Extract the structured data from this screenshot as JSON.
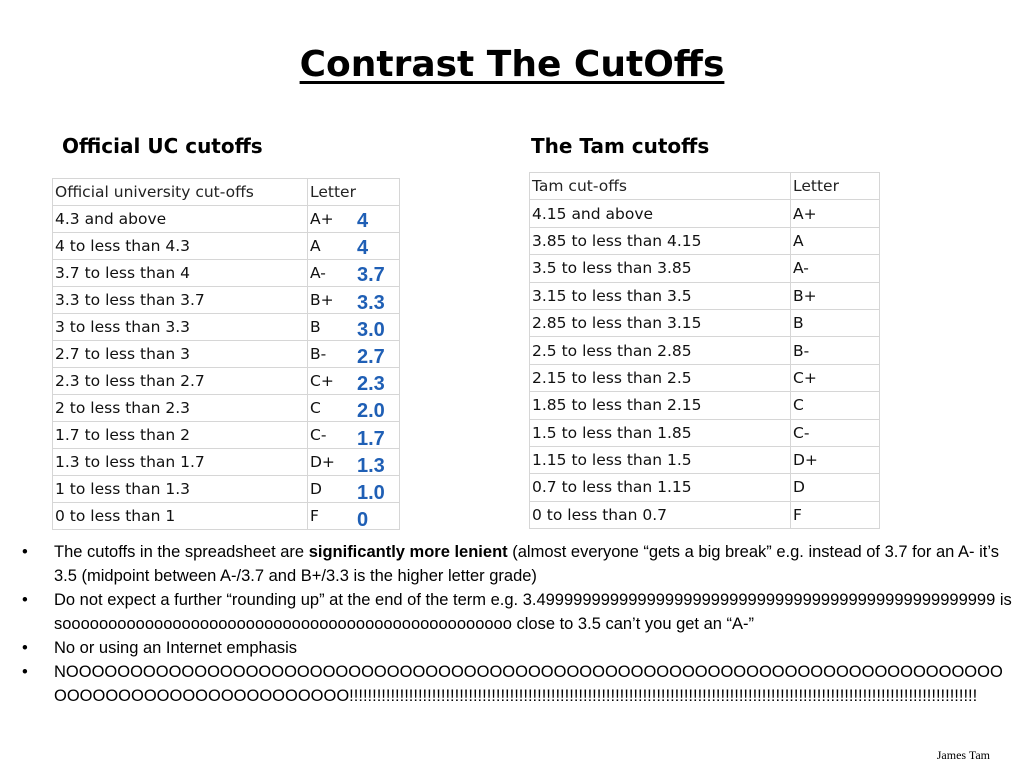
{
  "title": "Contrast The CutOffs",
  "uc": {
    "heading": "Official UC cutoffs",
    "header": [
      "Official university cut-offs",
      "Letter"
    ],
    "rows": [
      [
        "4.3 and above",
        "A+"
      ],
      [
        "4 to less than 4.3",
        "A"
      ],
      [
        "3.7 to less than 4",
        "A-"
      ],
      [
        "3.3 to less than 3.7",
        "B+"
      ],
      [
        "3 to less than 3.3",
        "B"
      ],
      [
        "2.7 to less than 3",
        "B-"
      ],
      [
        "2.3 to less than 2.7",
        "C+"
      ],
      [
        "2 to less than 2.3",
        "C"
      ],
      [
        "1.7 to less than 2",
        "C-"
      ],
      [
        "1.3 to less than 1.7",
        "D+"
      ],
      [
        "1 to less than 1.3",
        "D"
      ],
      [
        "0 to less than 1",
        "F"
      ]
    ],
    "grade_points": [
      "4",
      "4",
      "3.7",
      "3.3",
      "3.0",
      "2.7",
      "2.3",
      "2.0",
      "1.7",
      "1.3",
      "1.0",
      "0"
    ]
  },
  "tam": {
    "heading": "The Tam cutoffs",
    "header": [
      "Tam cut-offs",
      "Letter"
    ],
    "rows": [
      [
        "4.15 and above",
        "A+"
      ],
      [
        "3.85 to less than 4.15",
        "A"
      ],
      [
        "3.5 to less than 3.85",
        "A-"
      ],
      [
        "3.15 to less than 3.5",
        "B+"
      ],
      [
        "2.85 to less than 3.15",
        "B"
      ],
      [
        "2.5 to less than 2.85",
        "B-"
      ],
      [
        "2.15 to less than 2.5",
        "C+"
      ],
      [
        "1.85 to less than 2.15",
        "C"
      ],
      [
        "1.5 to less than 1.85",
        "C-"
      ],
      [
        "1.15 to less than 1.5",
        "D+"
      ],
      [
        "0.7 to less than 1.15",
        "D"
      ],
      [
        "0 to less than 0.7",
        "F"
      ]
    ]
  },
  "bullets": {
    "marker": "•",
    "b1_pre": "The cutoffs in the spreadsheet are ",
    "b1_bold": "significantly more lenient",
    "b1_post": " (almost everyone “gets a big break” e.g. instead of 3.7 for an A- it’s 3.5 (midpoint between A-/3.7 and B+/3.3 is the higher letter grade)",
    "b2": "Do not expect a further “rounding up” at the end of the term e.g. 3.49999999999999999999999999999999999999999999999999 is sooooooooooooooooooooooooooooooooooooooooooooooooo close to 3.5 can’t you get an “A-”",
    "b3": "No or using an Internet emphasis",
    "b4": "NOOOOOOOOOOOOOOOOOOOOOOOOOOOOOOOOOOOOOOOOOOOOOOOOOOOOOOOOOOOOOOOOOOOOOOOOOOOOOOOOOOOOOOOOOOOOOOOO!!!!!!!!!!!!!!!!!!!!!!!!!!!!!!!!!!!!!!!!!!!!!!!!!!!!!!!!!!!!!!!!!!!!!!!!!!!!!!!!!!!!!!!!!!!!!!!!!!!!!!!!!!!!!!!!!!!!!!!!!!!!!!!!!!!!!!!!!"
  },
  "author": "James Tam"
}
